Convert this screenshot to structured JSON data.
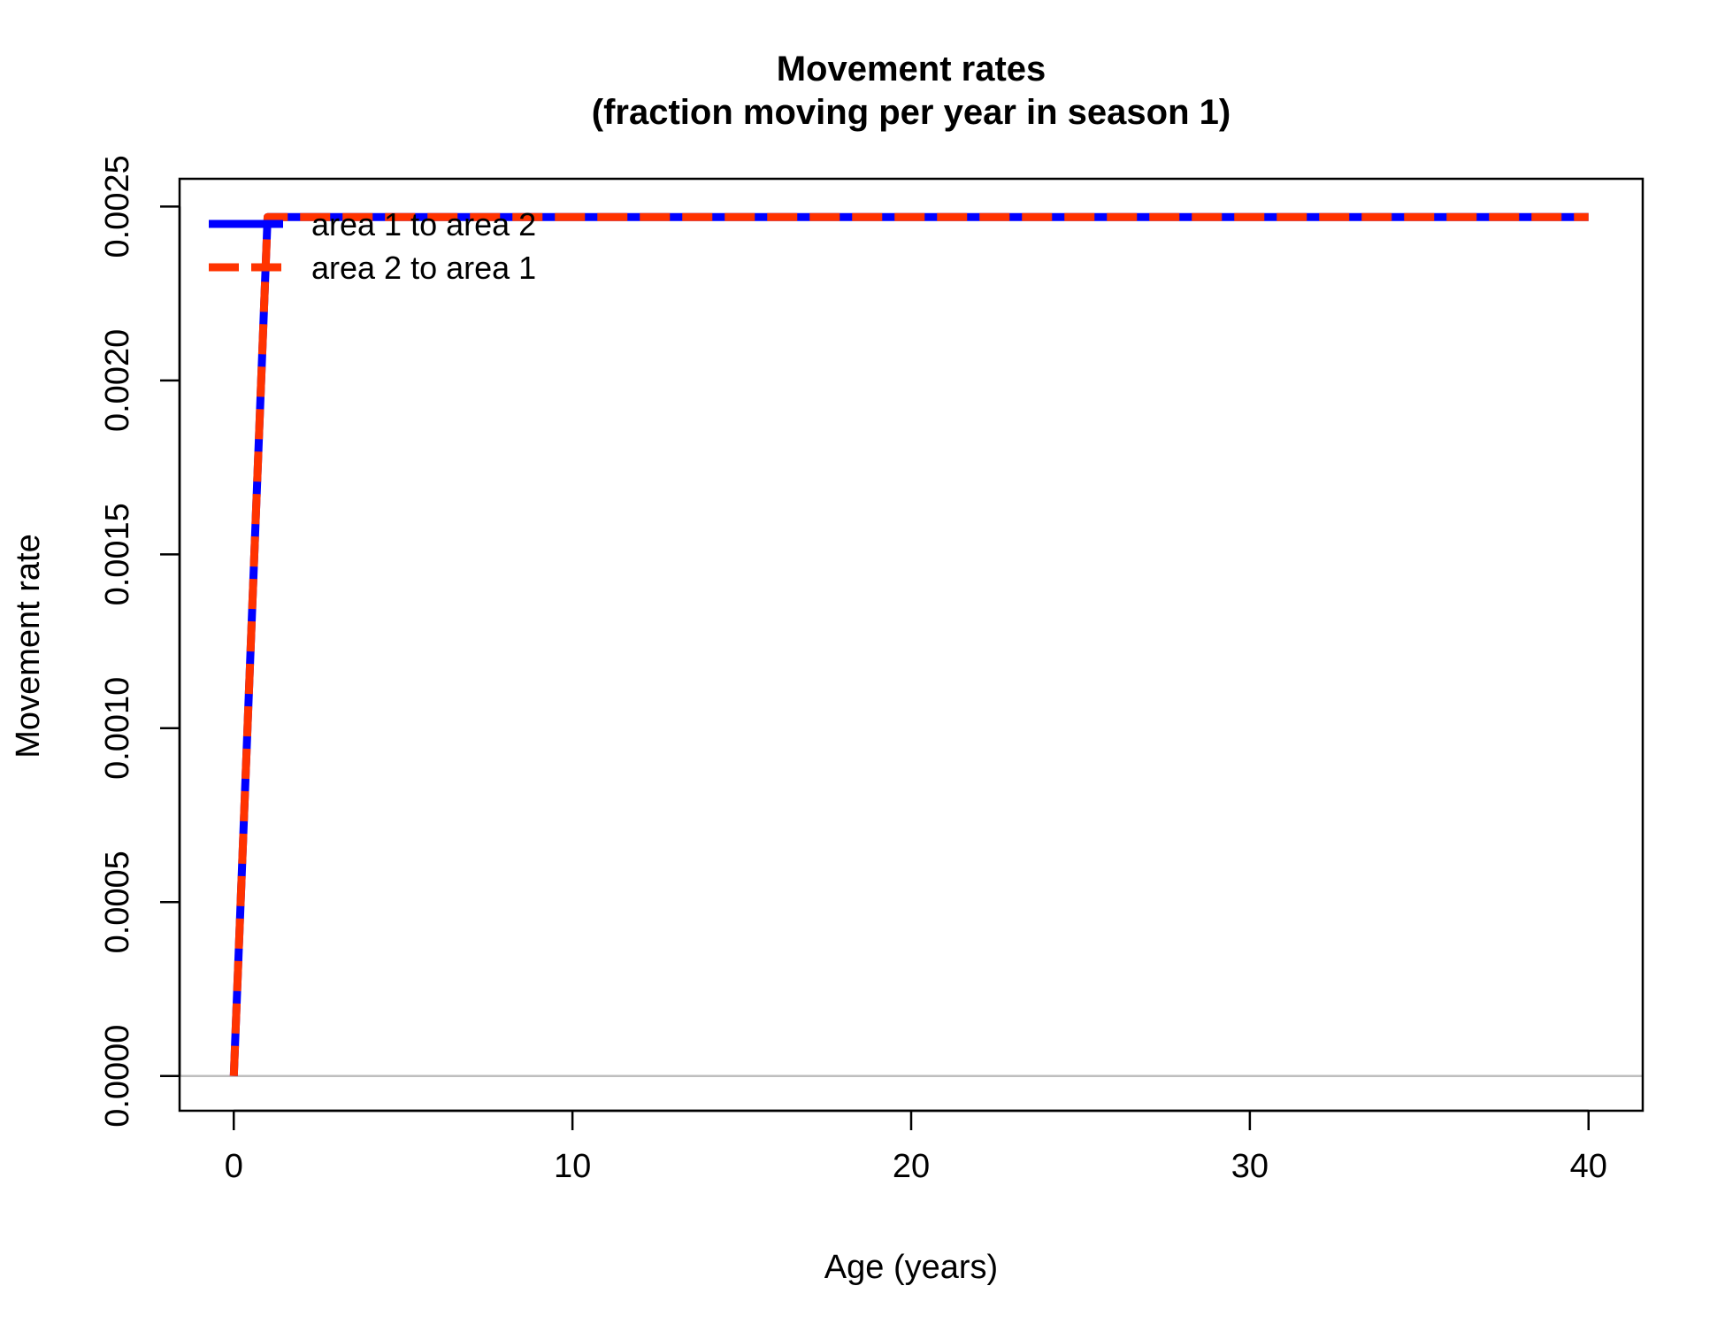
{
  "chart_data": {
    "type": "line",
    "title": "Movement rates",
    "subtitle": "(fraction moving per year in season 1)",
    "xlabel": "Age (years)",
    "ylabel": "Movement rate",
    "xlim": [
      -1.6,
      41.6
    ],
    "ylim": [
      -0.0001,
      0.00258
    ],
    "x_ticks": [
      0,
      10,
      20,
      30,
      40
    ],
    "x_tick_labels": [
      "0",
      "10",
      "20",
      "30",
      "40"
    ],
    "y_ticks": [
      0,
      0.0005,
      0.001,
      0.0015,
      0.002,
      0.0025
    ],
    "y_tick_labels": [
      "0.0000",
      "0.0005",
      "0.0010",
      "0.0015",
      "0.0020",
      "0.0025"
    ],
    "reference_line": {
      "y": 0,
      "color": "#bebebe"
    },
    "grid": false,
    "legend_position": "top-left",
    "series": [
      {
        "name": "area 1 to area 2",
        "color": "#0000ff",
        "style": "solid",
        "x": [
          0,
          1,
          40
        ],
        "y": [
          0,
          0.00247,
          0.00247
        ]
      },
      {
        "name": "area 2 to area 1",
        "color": "#ff3300",
        "style": "dashed",
        "x": [
          0,
          1,
          40
        ],
        "y": [
          0,
          0.00247,
          0.00247
        ]
      }
    ]
  }
}
